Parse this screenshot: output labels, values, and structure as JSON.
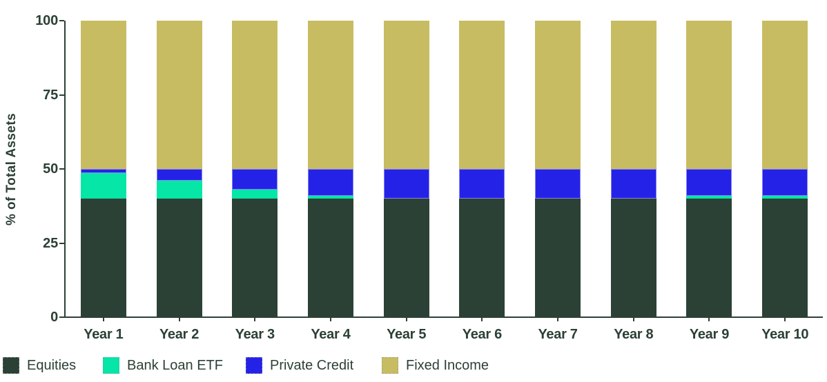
{
  "chart_data": {
    "type": "bar",
    "stacked": true,
    "title": "",
    "categories": [
      "Year 1",
      "Year 2",
      "Year 3",
      "Year 4",
      "Year 5",
      "Year 6",
      "Year 7",
      "Year 8",
      "Year 9",
      "Year 10"
    ],
    "series": [
      {
        "name": "Equities",
        "color": "#2C4135",
        "values": [
          40,
          40,
          40,
          40,
          40,
          40,
          40,
          40,
          40,
          40
        ]
      },
      {
        "name": "Bank Loan ETF",
        "color": "#06E6A6",
        "values": [
          8.5,
          6,
          3,
          1,
          0,
          0,
          0,
          0,
          1,
          1
        ]
      },
      {
        "name": "Private Credit",
        "color": "#2522E8",
        "values": [
          1.5,
          4,
          7,
          9,
          10,
          10,
          10,
          10,
          9,
          9
        ]
      },
      {
        "name": "Fixed Income",
        "color": "#C8BC62",
        "values": [
          50,
          50,
          50,
          50,
          50,
          50,
          50,
          50,
          50,
          50
        ]
      }
    ],
    "xlabel": "",
    "ylabel": "% of Total Assets",
    "ylim": [
      0,
      100
    ],
    "yticks": [
      0,
      25,
      50,
      75,
      100
    ],
    "grid": false,
    "legend_position": "bottom",
    "background": "#FFFFFF",
    "text_color": "#2C4034",
    "axis_color": "#2C4034"
  }
}
